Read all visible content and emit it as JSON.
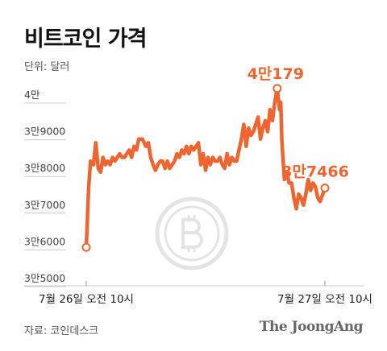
{
  "title": "비트코인 가격",
  "unit_label": "단위: 달러",
  "source": "자료: 코인데스크",
  "brand": "The JoongAng",
  "colors": {
    "line": "#f0642f",
    "axis": "#cccccc",
    "text": "#111111",
    "watermark": "#e4e4e4"
  },
  "watermark_icon": "bitcoin-icon",
  "chart_data": {
    "type": "line",
    "title": "비트코인 가격",
    "ylabel": "단위: 달러",
    "ylim": [
      35000,
      40000
    ],
    "yticks": [
      {
        "value": 40000,
        "label": "4만"
      },
      {
        "value": 39000,
        "label": "3만9000"
      },
      {
        "value": 38000,
        "label": "3만8000"
      },
      {
        "value": 37000,
        "label": "3만7000"
      },
      {
        "value": 36000,
        "label": "3만6000"
      },
      {
        "value": 35000,
        "label": "3만5000"
      }
    ],
    "xrange": [
      0,
      1.2
    ],
    "xticks": [
      {
        "value": 0,
        "label": "7월 26일 오전 10시"
      },
      {
        "value": 1,
        "label": "7월 27일 오전 10시"
      }
    ],
    "grid": false,
    "series": [
      {
        "x": [
          0,
          0.01,
          0.018,
          0.03,
          0.04,
          0.05,
          0.06,
          0.07,
          0.08,
          0.09,
          0.1,
          0.11,
          0.12,
          0.13,
          0.14,
          0.15,
          0.16,
          0.17,
          0.18,
          0.19,
          0.2,
          0.21,
          0.22,
          0.235,
          0.25,
          0.26,
          0.27,
          0.28,
          0.29,
          0.3,
          0.31,
          0.32,
          0.33,
          0.34,
          0.35,
          0.36,
          0.37,
          0.38,
          0.39,
          0.4,
          0.41,
          0.42,
          0.43,
          0.44,
          0.45,
          0.46,
          0.47,
          0.48,
          0.49,
          0.5,
          0.51,
          0.52,
          0.53,
          0.54,
          0.55,
          0.56,
          0.57,
          0.58,
          0.59,
          0.6,
          0.61,
          0.62,
          0.63,
          0.64,
          0.65,
          0.66,
          0.67,
          0.68,
          0.69,
          0.7,
          0.71,
          0.72,
          0.73,
          0.74,
          0.75,
          0.76,
          0.77,
          0.78,
          0.79,
          0.8,
          0.81,
          0.815,
          0.82,
          0.83,
          0.84,
          0.85,
          0.86,
          0.87,
          0.88,
          0.89,
          0.9,
          0.91,
          0.92,
          0.93,
          0.94,
          0.95,
          0.96,
          0.97,
          0.98,
          1.0
        ],
        "y": [
          35850,
          37500,
          38200,
          38100,
          38700,
          38000,
          37900,
          38300,
          38100,
          38200,
          38100,
          38300,
          38200,
          38300,
          38400,
          38300,
          38300,
          38400,
          38500,
          38300,
          38600,
          38500,
          38800,
          38800,
          38600,
          38700,
          38300,
          38100,
          37950,
          38100,
          38200,
          38200,
          38000,
          38200,
          38000,
          38100,
          38200,
          38400,
          38300,
          38500,
          38400,
          38600,
          38400,
          38600,
          38500,
          38600,
          38700,
          38100,
          38400,
          37950,
          38300,
          38100,
          38300,
          38200,
          38200,
          38300,
          38100,
          38000,
          38400,
          38100,
          38300,
          38200,
          38200,
          38500,
          38800,
          39200,
          38600,
          39100,
          38900,
          39000,
          39200,
          39400,
          38800,
          39100,
          39300,
          39000,
          39600,
          39300,
          39800,
          40179,
          39600,
          39800,
          38700,
          37700,
          37900,
          37600,
          37600,
          37200,
          36900,
          37300,
          37200,
          37000,
          37300,
          37700,
          37400,
          37600,
          37500,
          37200,
          37100,
          37466
        ]
      }
    ],
    "annotations": [
      {
        "x": 0.8,
        "y": 40179,
        "label": "4만179"
      },
      {
        "x": 1.0,
        "y": 37466,
        "label": "3만7466"
      }
    ],
    "start_marker": {
      "x": 0,
      "y": 35850
    }
  }
}
